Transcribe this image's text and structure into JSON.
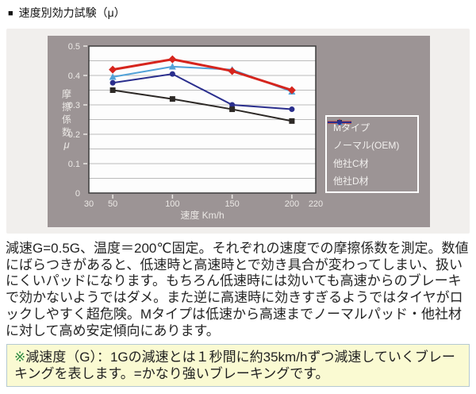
{
  "header": {
    "bullet": "■",
    "title": "速度別効力試験（μ）"
  },
  "chart_data": {
    "type": "line",
    "title": "",
    "x": [
      50,
      100,
      150,
      200
    ],
    "series": [
      {
        "name": "Mタイプ",
        "color": "#d6251d",
        "marker": "diamond",
        "line_width": 3,
        "values": [
          0.42,
          0.455,
          0.415,
          0.35
        ]
      },
      {
        "name": "ノーマル(OEM)",
        "color": "#2d2926",
        "marker": "square",
        "line_width": 2,
        "values": [
          0.35,
          0.32,
          0.285,
          0.245
        ]
      },
      {
        "name": "他社C材",
        "color": "#52a2d8",
        "marker": "triangle",
        "line_width": 2,
        "values": [
          0.395,
          0.43,
          0.42,
          0.345
        ]
      },
      {
        "name": "他社D材",
        "color": "#2a2e8d",
        "marker": "circle",
        "line_width": 2,
        "values": [
          0.375,
          0.405,
          0.3,
          0.285
        ]
      }
    ],
    "draw_order": [
      2,
      3,
      1,
      0
    ],
    "xlabel": "速度 Km/h",
    "ylabel": "摩擦係数μ",
    "xlim": [
      30,
      220
    ],
    "ylim": [
      0,
      0.5
    ],
    "x_ticks": [
      30,
      50,
      100,
      150,
      200,
      220
    ],
    "y_ticks": [
      0,
      0.1,
      0.2,
      0.3,
      0.4,
      0.5
    ],
    "y_tick_labels": [
      "0",
      "0.1",
      "0.2",
      "0.3",
      "0.4",
      "0.5"
    ],
    "grid_step": 0.05,
    "grid": "horizontal",
    "legend_position": "inside-right",
    "colors": {
      "panel_bg": "#9c9495",
      "section_bg": "#f1efed",
      "plot_bg": "#fdfdfd",
      "grid_line": "#bbbbbb",
      "plot_border": "#3d3d3d",
      "tick_label": "#ebe8e5",
      "legend_border": "#ffffff"
    }
  },
  "description": "減速G=0.5G、温度＝200℃固定。それぞれの速度での摩擦係数を測定。数値にばらつきがあると、低速時と高速時とで効き具合が変わってしまい、扱いにくいパッドになります。もちろん低速時には効いても高速からのブレーキで効かないようではダメ。また逆に高速時に効きすぎるようではタイヤがロックしやすく超危険。Mタイプは低速から高速までノーマルパッド・他社材に対して高め安定傾向にあります。",
  "note": {
    "mark": "※",
    "text": "減速度（G）：1Gの減速とは１秒間に約35km/hずつ減速していくブレーキングを表します。=かなり強いブレーキングです。"
  }
}
